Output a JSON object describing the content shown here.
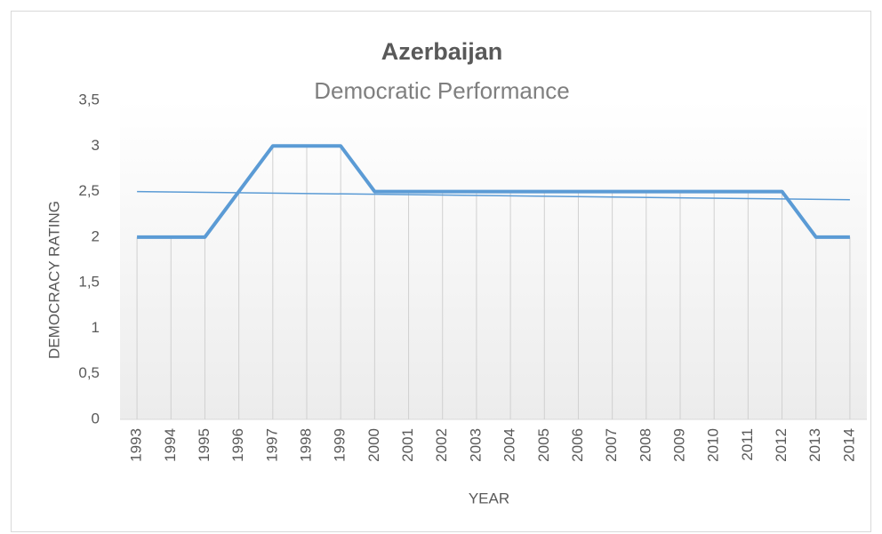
{
  "chart_data": {
    "type": "line",
    "title": "Azerbaijan",
    "subtitle": "Democratic Performance",
    "x_label": "YEAR",
    "y_label": "DEMOCRACY  RATING",
    "categories": [
      "1993",
      "1994",
      "1995",
      "1996",
      "1997",
      "1998",
      "1999",
      "2000",
      "2001",
      "2002",
      "2003",
      "2004",
      "2005",
      "2006",
      "2007",
      "2008",
      "2009",
      "2010",
      "2011",
      "2012",
      "2013",
      "2014"
    ],
    "series": [
      {
        "color": "#5b9bd5",
        "values": [
          2,
          2,
          2,
          2.5,
          3,
          3,
          3,
          2.5,
          2.5,
          2.5,
          2.5,
          2.5,
          2.5,
          2.5,
          2.5,
          2.5,
          2.5,
          2.5,
          2.5,
          2.5,
          2,
          2
        ]
      }
    ],
    "trendline": {
      "color": "#5b9bd5",
      "values": [
        2.5,
        2.41
      ]
    },
    "ylim": [
      0,
      3.5
    ],
    "yticks": [
      0,
      {
        "value": 0.5,
        "label": "0,5"
      },
      1,
      {
        "value": 1.5,
        "label": "1,5"
      },
      2,
      {
        "value": 2.5,
        "label": "2,5"
      },
      3,
      {
        "value": 3.5,
        "label": "3,5"
      }
    ],
    "drop_lines": true
  }
}
